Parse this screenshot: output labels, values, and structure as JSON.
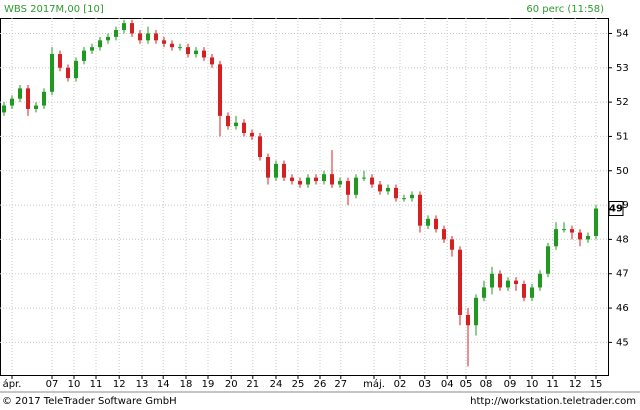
{
  "chart_data": {
    "type": "candlestick",
    "title": "WBS 2017M,00 [10]",
    "interval": "60 perc (11:58)",
    "footer_left": "© 2017 TeleTrader Software GmbH",
    "footer_right": "http://workstation.teletrader.com",
    "up_color": "#1f9a1f",
    "down_color": "#d42020",
    "open": [
      51.7,
      51.9,
      52.1,
      52.4,
      51.8,
      51.9,
      52.3,
      53.4,
      53.0,
      52.7,
      53.2,
      53.5,
      53.6,
      53.8,
      53.9,
      54.1,
      54.3,
      54.0,
      53.8,
      54.0,
      53.8,
      53.7,
      53.6,
      53.6,
      53.4,
      53.5,
      53.3,
      53.1,
      51.6,
      51.3,
      51.4,
      51.1,
      51.0,
      50.4,
      49.8,
      50.2,
      49.8,
      49.7,
      49.6,
      49.8,
      49.7,
      49.9,
      49.6,
      49.7,
      49.3,
      49.8,
      49.8,
      49.6,
      49.4,
      49.5,
      49.2,
      49.2,
      49.3,
      48.4,
      48.6,
      48.3,
      48.0,
      47.7,
      45.8,
      45.5,
      46.3,
      46.6,
      47.0,
      46.6,
      46.8,
      46.7,
      46.3,
      46.6,
      47.0,
      47.8,
      48.3,
      48.3,
      48.2,
      48.0,
      48.1
    ],
    "high": [
      52.0,
      52.2,
      52.5,
      52.5,
      52.0,
      52.4,
      53.6,
      53.5,
      53.1,
      53.3,
      53.6,
      53.7,
      53.9,
      54.0,
      54.2,
      54.4,
      54.4,
      54.1,
      54.2,
      54.1,
      53.9,
      53.8,
      53.7,
      53.7,
      53.6,
      53.6,
      53.4,
      53.2,
      51.7,
      51.6,
      51.5,
      51.2,
      51.1,
      50.5,
      50.3,
      50.3,
      49.9,
      49.8,
      49.9,
      49.9,
      50.0,
      50.6,
      49.8,
      49.8,
      49.9,
      50.0,
      49.9,
      49.7,
      49.6,
      49.6,
      49.3,
      49.4,
      49.4,
      48.7,
      48.7,
      48.4,
      48.1,
      47.8,
      46.0,
      46.4,
      46.8,
      47.2,
      47.1,
      46.9,
      46.9,
      46.8,
      46.7,
      47.1,
      47.9,
      48.5,
      48.5,
      48.4,
      48.3,
      48.2,
      49.0
    ],
    "low": [
      51.6,
      51.8,
      52.0,
      51.6,
      51.7,
      51.8,
      52.2,
      52.9,
      52.6,
      52.6,
      53.1,
      53.4,
      53.5,
      53.7,
      53.8,
      54.0,
      53.9,
      53.7,
      53.7,
      53.7,
      53.6,
      53.5,
      53.5,
      53.3,
      53.3,
      53.2,
      53.0,
      51.0,
      51.2,
      51.2,
      51.0,
      50.9,
      50.3,
      49.6,
      49.7,
      49.7,
      49.6,
      49.5,
      49.5,
      49.6,
      49.6,
      49.5,
      49.5,
      49.0,
      49.2,
      49.7,
      49.5,
      49.3,
      49.3,
      49.1,
      49.1,
      49.1,
      48.2,
      48.3,
      48.2,
      47.9,
      47.5,
      45.5,
      44.3,
      45.2,
      46.2,
      46.4,
      46.5,
      46.5,
      46.5,
      46.2,
      46.2,
      46.5,
      46.9,
      47.7,
      48.2,
      48.0,
      47.8,
      47.9,
      48.0
    ],
    "close": [
      51.9,
      52.1,
      52.4,
      51.8,
      51.9,
      52.3,
      53.4,
      53.0,
      52.7,
      53.2,
      53.5,
      53.6,
      53.8,
      53.9,
      54.1,
      54.3,
      54.0,
      53.8,
      54.0,
      53.8,
      53.7,
      53.6,
      53.6,
      53.4,
      53.5,
      53.3,
      53.1,
      51.6,
      51.3,
      51.4,
      51.1,
      51.0,
      50.4,
      49.8,
      50.2,
      49.8,
      49.7,
      49.6,
      49.8,
      49.7,
      49.9,
      49.6,
      49.7,
      49.3,
      49.8,
      49.8,
      49.6,
      49.4,
      49.5,
      49.2,
      49.2,
      49.3,
      48.4,
      48.6,
      48.3,
      48.0,
      47.7,
      45.8,
      45.5,
      46.3,
      46.6,
      47.0,
      46.6,
      46.8,
      46.7,
      46.3,
      46.6,
      47.0,
      47.8,
      48.3,
      48.3,
      48.2,
      48.0,
      48.1,
      48.9
    ],
    "last_label": "49",
    "xlim": [
      -0.5,
      75.5
    ],
    "xticks": [
      {
        "value": 1,
        "label": "ápr."
      },
      {
        "value": 6,
        "label": "07"
      },
      {
        "value": 8.75,
        "label": "10"
      },
      {
        "value": 11.5,
        "label": "11"
      },
      {
        "value": 14.4,
        "label": "12"
      },
      {
        "value": 17.25,
        "label": "13"
      },
      {
        "value": 19.9,
        "label": "14"
      },
      {
        "value": 22.75,
        "label": "18"
      },
      {
        "value": 25.5,
        "label": "19"
      },
      {
        "value": 28.4,
        "label": "20"
      },
      {
        "value": 31.1,
        "label": "21"
      },
      {
        "value": 34,
        "label": "24"
      },
      {
        "value": 36.75,
        "label": "25"
      },
      {
        "value": 39.5,
        "label": "26"
      },
      {
        "value": 42.1,
        "label": "27"
      },
      {
        "value": 46.25,
        "label": "máj."
      },
      {
        "value": 49.5,
        "label": "02"
      },
      {
        "value": 52.6,
        "label": "03"
      },
      {
        "value": 55.4,
        "label": "04"
      },
      {
        "value": 57.75,
        "label": "05"
      },
      {
        "value": 60.25,
        "label": "08"
      },
      {
        "value": 63.25,
        "label": "09"
      },
      {
        "value": 66,
        "label": "10"
      },
      {
        "value": 68.6,
        "label": "11"
      },
      {
        "value": 71.4,
        "label": "12"
      },
      {
        "value": 74,
        "label": "15"
      }
    ],
    "ylim": [
      44.05,
      54.45
    ],
    "yticks": [
      45,
      46,
      47,
      48,
      49,
      50,
      51,
      52,
      53,
      54
    ],
    "grid": true
  }
}
